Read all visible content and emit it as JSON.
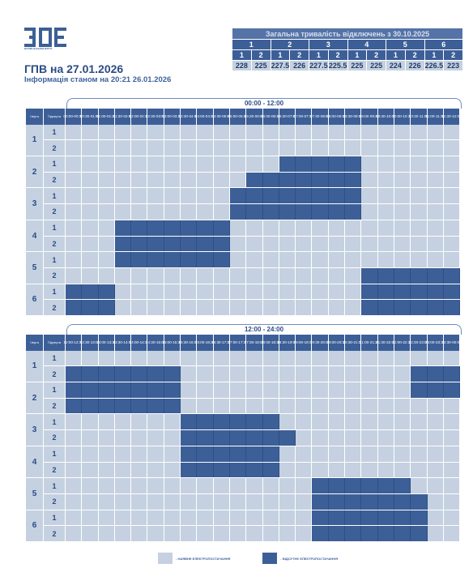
{
  "header": {
    "title": "ГПВ на 27.01.2026",
    "subtitle": "Інформація станом на 20:21 26.01.2026",
    "logo_text": "ВОЛИНЬОБЛЕНЕРГО"
  },
  "summary": {
    "title": "Загальна тривалість відключень з 30.10.2025",
    "queues": [
      "1",
      "2",
      "3",
      "4",
      "5",
      "6"
    ],
    "subqueues": [
      "1",
      "2",
      "1",
      "2",
      "1",
      "2",
      "1",
      "2",
      "1",
      "2",
      "1",
      "2"
    ],
    "values": [
      "228",
      "225",
      "227.5",
      "226",
      "227.5",
      "225.5",
      "225",
      "225",
      "224",
      "226",
      "226.5",
      "223"
    ]
  },
  "labels": {
    "queue": "Черга",
    "subqueue": "Підчерга"
  },
  "queue_numbers": [
    "1",
    "2",
    "3",
    "4",
    "5",
    "6"
  ],
  "subqueue_numbers": [
    "1",
    "2"
  ],
  "morning": {
    "period": "00:00 - 12:00",
    "slots": [
      "00:00-00:30",
      "00:30-01:00",
      "01:00-01:30",
      "01:30-02:00",
      "02:00-02:30",
      "02:30-03:00",
      "03:00-03:30",
      "03:30-04:00",
      "04:00-04:30",
      "04:30-05:00",
      "05:00-05:30",
      "05:30-06:00",
      "06:00-06:30",
      "06:30-07:00",
      "07:00-07:30",
      "07:30-08:00",
      "08:00-08:30",
      "08:30-09:00",
      "09:00-09:30",
      "09:30-10:00",
      "10:00-10:30",
      "10:30-11:00",
      "11:00-11:30",
      "11:30-12:00"
    ],
    "rows": [
      "000000000000000000000000",
      "000000000000000000000000",
      "000000000000011111000000",
      "000000000001111111000000",
      "000000000011111111000000",
      "000000000011111111000000",
      "000111111100000000000000",
      "000111111100000000000000",
      "000111111100000000000000",
      "000000000000000000111111",
      "111000000000000000111111",
      "111000000000000000111111"
    ]
  },
  "evening": {
    "period": "12:00 - 24:00",
    "slots": [
      "12:00-12:30",
      "12:30-13:00",
      "13:00-13:30",
      "13:30-14:00",
      "14:00-14:30",
      "14:30-15:00",
      "15:00-15:30",
      "15:30-16:00",
      "16:00-16:30",
      "16:30-17:00",
      "17:00-17:30",
      "17:30-18:00",
      "18:00-18:30",
      "18:30-19:00",
      "19:00-19:30",
      "19:30-20:00",
      "20:00-20:30",
      "20:30-21:00",
      "21:00-21:30",
      "21:30-22:00",
      "22:00-22:30",
      "22:30-23:00",
      "23:00-23:30",
      "23:30-00:00"
    ],
    "rows": [
      "000000000000000000000000",
      "111111100000000000000111",
      "111111100000000000000111",
      "111111100000000000000000",
      "000000011111100000000000",
      "000000011111110000000000",
      "000000011111100000000000",
      "000000011111100000000000",
      "000000000000000111111000",
      "000000000000000111111100",
      "000000000000000111111100",
      "000000000000000111111100"
    ]
  },
  "legend": {
    "available": "- НАЯВНЕ ЕЛЕКТРОПОСТАЧАННЯ",
    "off": "- ВІДСУТНЄ ЕЛЕКТРОПОСТАЧАННЯ"
  },
  "colors": {
    "available": "#c5d1e0",
    "off": "#3d5f97"
  }
}
